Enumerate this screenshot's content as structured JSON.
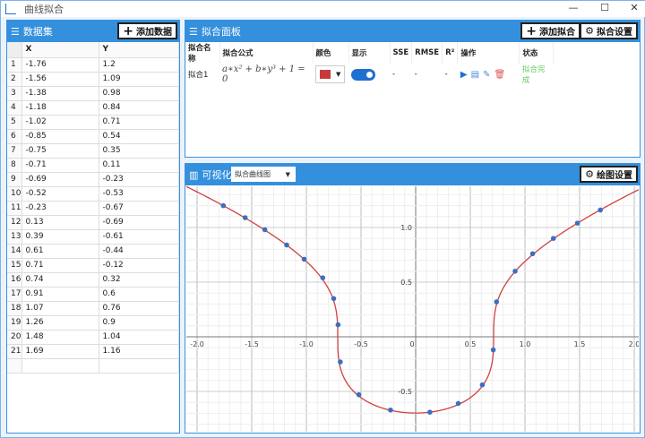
{
  "window": {
    "title": "曲线拟合",
    "minimize": "—",
    "maximize": "☐",
    "close": "✕"
  },
  "dataset": {
    "title": "数据集",
    "add_button": "添加数据",
    "columns": [
      "X",
      "Y"
    ],
    "rows": [
      [
        "-1.76",
        "1.2"
      ],
      [
        "-1.56",
        "1.09"
      ],
      [
        "-1.38",
        "0.98"
      ],
      [
        "-1.18",
        "0.84"
      ],
      [
        "-1.02",
        "0.71"
      ],
      [
        "-0.85",
        "0.54"
      ],
      [
        "-0.75",
        "0.35"
      ],
      [
        "-0.71",
        "0.11"
      ],
      [
        "-0.69",
        "-0.23"
      ],
      [
        "-0.52",
        "-0.53"
      ],
      [
        "-0.23",
        "-0.67"
      ],
      [
        "0.13",
        "-0.69"
      ],
      [
        "0.39",
        "-0.61"
      ],
      [
        "0.61",
        "-0.44"
      ],
      [
        "0.71",
        "-0.12"
      ],
      [
        "0.74",
        "0.32"
      ],
      [
        "0.91",
        "0.6"
      ],
      [
        "1.07",
        "0.76"
      ],
      [
        "1.26",
        "0.9"
      ],
      [
        "1.48",
        "1.04"
      ],
      [
        "1.69",
        "1.16"
      ]
    ]
  },
  "fit_panel": {
    "title": "拟合面板",
    "add_button": "添加拟合",
    "settings_button": "拟合设置",
    "columns": [
      "拟合名称",
      "拟合公式",
      "颜色",
      "显示",
      "SSE",
      "RMSE",
      "R²",
      "操作",
      "状态"
    ],
    "rows": [
      {
        "name": "拟合1",
        "formula": "a∗x² + b∗y³ + 1 = 0",
        "color": "#c83a3a",
        "visible": true,
        "sse": "-",
        "rmse": "-",
        "r2": "-",
        "status": "拟合完成"
      }
    ]
  },
  "viz": {
    "title": "可视化",
    "chart_select": "拟合曲线图",
    "settings_button": "绘图设置"
  },
  "chart_data": {
    "type": "scatter",
    "xlim": [
      -2.1,
      2.05
    ],
    "ylim": [
      -0.86,
      1.38
    ],
    "grid": true,
    "x_ticks": [
      "-2.0",
      "-1.5",
      "-1.0",
      "-0.5",
      "0",
      "0.5",
      "1.0",
      "1.5",
      "2.0"
    ],
    "y_ticks": [
      "-0.5",
      "0.5",
      "1.0"
    ],
    "point_color": "#3a6fc0",
    "curve_color": "#d04040",
    "curve": "a*x^2+b*y^3+1=0"
  }
}
